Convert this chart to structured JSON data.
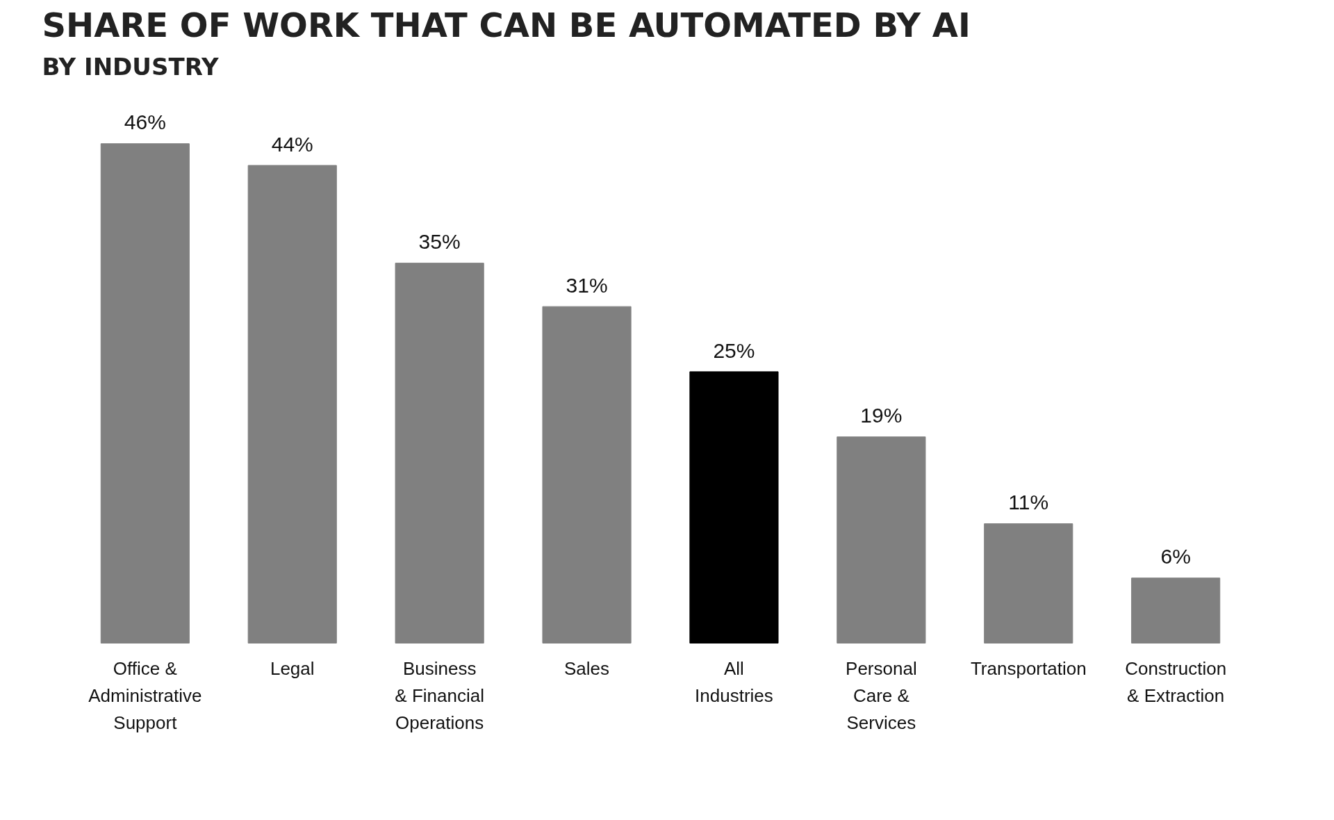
{
  "chart_data": {
    "type": "bar",
    "title": "SHARE OF WORK THAT CAN BE AUTOMATED BY AI",
    "subtitle": "BY INDUSTRY",
    "categories": [
      "Office &\nAdministrative\nSupport",
      "Legal",
      "Business\n& Financial\nOperations",
      "Sales",
      "All\nIndustries",
      "Personal\nCare &\nServices",
      "Transportation",
      "Construction\n& Extraction"
    ],
    "values": [
      46,
      44,
      35,
      31,
      25,
      19,
      11,
      6
    ],
    "value_labels": [
      "46%",
      "44%",
      "35%",
      "31%",
      "25%",
      "19%",
      "11%",
      "6%"
    ],
    "colors": [
      "#808080",
      "#808080",
      "#808080",
      "#808080",
      "#000000",
      "#808080",
      "#808080",
      "#808080"
    ]
  }
}
